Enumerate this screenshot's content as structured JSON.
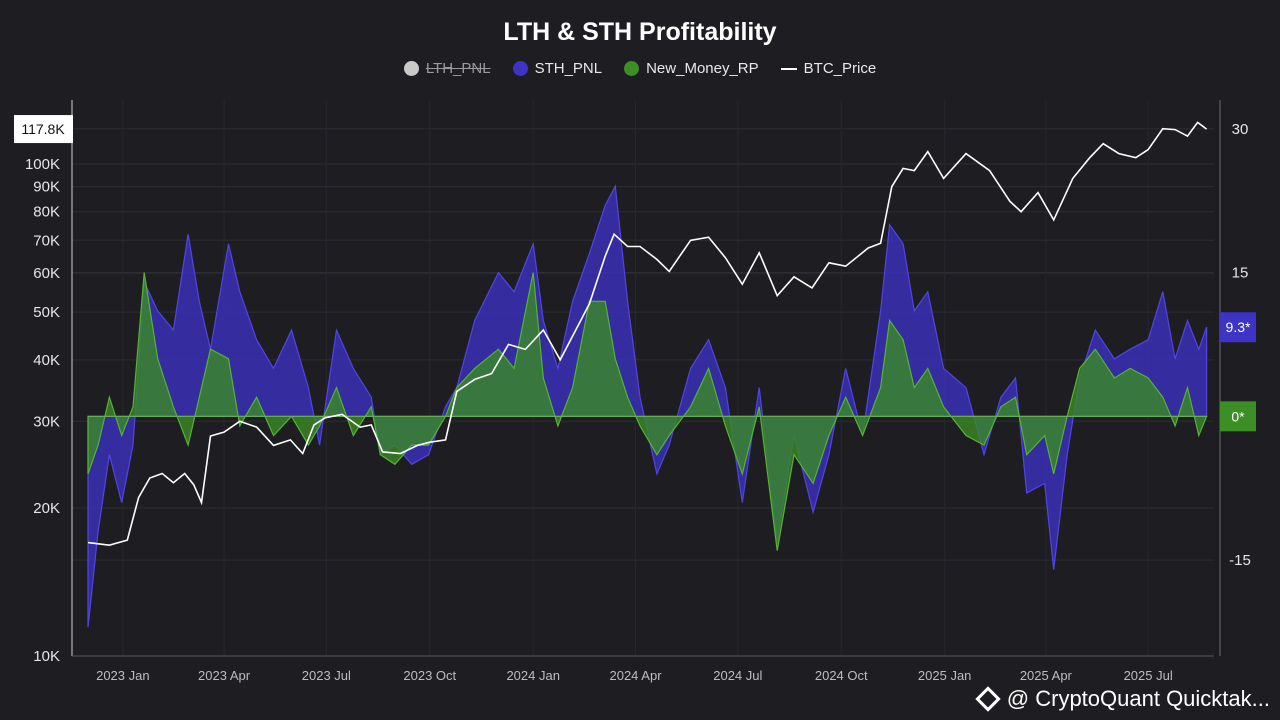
{
  "chart_data": {
    "type": "area",
    "title": "LTH & STH Profitability",
    "legend": [
      {
        "name": "LTH_PNL",
        "color": "#c9c9c9",
        "hidden": true
      },
      {
        "name": "STH_PNL",
        "color": "#3d33c4",
        "hidden": false
      },
      {
        "name": "New_Money_RP",
        "color": "#3c8f25",
        "hidden": false
      },
      {
        "name": "BTC_Price",
        "color": "#ffffff",
        "hidden": false
      }
    ],
    "legend_position": "top-center",
    "x_tick_labels": [
      "2023 Jan",
      "2023 Apr",
      "2023 Jul",
      "2023 Oct",
      "2024 Jan",
      "2024 Apr",
      "2024 Jul",
      "2024 Oct",
      "2025 Jan",
      "2025 Apr",
      "2025 Jul"
    ],
    "x_range": [
      "2022-12-01",
      "2025-08-25"
    ],
    "left_axis": {
      "scale": "log",
      "range": [
        10000,
        130000
      ],
      "tick_labels": [
        "10K",
        "20K",
        "30K",
        "40K",
        "50K",
        "60K",
        "70K",
        "80K",
        "90K",
        "100K"
      ],
      "tick_values": [
        10000,
        20000,
        30000,
        40000,
        50000,
        60000,
        70000,
        80000,
        90000,
        100000
      ],
      "current_label": "117.8K",
      "current_value": 117800
    },
    "right_axis": {
      "scale": "linear",
      "range": [
        -25,
        33
      ],
      "tick_labels": [
        "-15",
        "15",
        "30"
      ],
      "tick_values": [
        -15,
        15,
        30
      ],
      "badges": [
        {
          "label": "9.3*",
          "value": 9.3,
          "color": "#3d33c4"
        },
        {
          "label": "0*",
          "value": 0,
          "color": "#3c8f25"
        }
      ]
    },
    "grid": true,
    "series": [
      {
        "name": "BTC_Price",
        "axis": "left",
        "dates": [
          "2022-12-01",
          "2022-12-20",
          "2023-01-05",
          "2023-01-15",
          "2023-01-25",
          "2023-02-05",
          "2023-02-15",
          "2023-02-25",
          "2023-03-05",
          "2023-03-12",
          "2023-03-20",
          "2023-04-01",
          "2023-04-15",
          "2023-04-30",
          "2023-05-15",
          "2023-05-30",
          "2023-06-10",
          "2023-06-20",
          "2023-06-30",
          "2023-07-15",
          "2023-07-31",
          "2023-08-10",
          "2023-08-20",
          "2023-09-05",
          "2023-09-20",
          "2023-10-01",
          "2023-10-15",
          "2023-10-25",
          "2023-11-10",
          "2023-11-25",
          "2023-12-10",
          "2023-12-25",
          "2024-01-10",
          "2024-01-25",
          "2024-02-10",
          "2024-02-20",
          "2024-03-05",
          "2024-03-13",
          "2024-03-25",
          "2024-04-05",
          "2024-04-20",
          "2024-05-01",
          "2024-05-20",
          "2024-06-05",
          "2024-06-20",
          "2024-07-05",
          "2024-07-20",
          "2024-08-05",
          "2024-08-20",
          "2024-09-05",
          "2024-09-20",
          "2024-10-05",
          "2024-10-25",
          "2024-11-05",
          "2024-11-15",
          "2024-11-25",
          "2024-12-05",
          "2024-12-17",
          "2024-12-31",
          "2025-01-20",
          "2025-02-10",
          "2025-02-28",
          "2025-03-10",
          "2025-03-25",
          "2025-04-08",
          "2025-04-25",
          "2025-05-10",
          "2025-05-22",
          "2025-06-05",
          "2025-06-20",
          "2025-07-01",
          "2025-07-14",
          "2025-07-25",
          "2025-08-05",
          "2025-08-14",
          "2025-08-22"
        ],
        "values": [
          17000,
          16800,
          17200,
          21000,
          23000,
          23500,
          22500,
          23500,
          22300,
          20500,
          28000,
          28500,
          30000,
          29200,
          26800,
          27500,
          25800,
          29500,
          30500,
          31000,
          29200,
          29500,
          26000,
          25800,
          26800,
          27200,
          27500,
          34500,
          36500,
          37500,
          43000,
          42000,
          46000,
          40000,
          47000,
          52000,
          65000,
          72000,
          68000,
          68000,
          64000,
          60500,
          70000,
          71000,
          64500,
          57000,
          66000,
          54000,
          59000,
          56000,
          63000,
          62000,
          67500,
          69000,
          90000,
          98000,
          97000,
          106000,
          93500,
          105000,
          97000,
          84000,
          80000,
          87500,
          77000,
          93500,
          103000,
          110000,
          105000,
          103000,
          107000,
          118000,
          117500,
          114000,
          121500,
          117800
        ]
      },
      {
        "name": "STH_PNL",
        "axis": "right",
        "dates": [
          "2022-12-01",
          "2022-12-10",
          "2022-12-20",
          "2022-12-31",
          "2023-01-10",
          "2023-01-20",
          "2023-02-01",
          "2023-02-15",
          "2023-02-28",
          "2023-03-10",
          "2023-03-20",
          "2023-04-05",
          "2023-04-15",
          "2023-04-30",
          "2023-05-15",
          "2023-05-31",
          "2023-06-15",
          "2023-06-25",
          "2023-07-10",
          "2023-07-25",
          "2023-08-10",
          "2023-08-18",
          "2023-08-31",
          "2023-09-15",
          "2023-09-30",
          "2023-10-15",
          "2023-10-25",
          "2023-11-10",
          "2023-12-01",
          "2023-12-15",
          "2024-01-01",
          "2024-01-10",
          "2024-01-23",
          "2024-02-05",
          "2024-02-20",
          "2024-03-05",
          "2024-03-14",
          "2024-03-25",
          "2024-04-05",
          "2024-04-20",
          "2024-05-01",
          "2024-05-20",
          "2024-06-05",
          "2024-06-20",
          "2024-07-05",
          "2024-07-20",
          "2024-08-05",
          "2024-08-20",
          "2024-09-06",
          "2024-09-20",
          "2024-10-05",
          "2024-10-20",
          "2024-11-05",
          "2024-11-13",
          "2024-11-25",
          "2024-12-05",
          "2024-12-17",
          "2024-12-31",
          "2025-01-20",
          "2025-02-05",
          "2025-02-20",
          "2025-03-05",
          "2025-03-15",
          "2025-03-31",
          "2025-04-08",
          "2025-04-20",
          "2025-05-01",
          "2025-05-15",
          "2025-06-01",
          "2025-06-15",
          "2025-07-01",
          "2025-07-14",
          "2025-07-25",
          "2025-08-05",
          "2025-08-15",
          "2025-08-22"
        ],
        "values": [
          -22,
          -12,
          -4,
          -9,
          -3,
          14,
          11,
          9,
          19,
          12,
          7,
          18,
          13,
          8,
          5,
          9,
          3,
          -3,
          9,
          5,
          2,
          -4,
          -3,
          -5,
          -4,
          1,
          3,
          10,
          15,
          13,
          18,
          10,
          5,
          12,
          17,
          22,
          24,
          12,
          2,
          -6,
          -3,
          5,
          8,
          3,
          -9,
          3,
          -13,
          -2,
          -10,
          -4,
          5,
          -2,
          11,
          20,
          18,
          11,
          13,
          5,
          3,
          -4,
          2,
          4,
          -8,
          -7,
          -16,
          -4,
          4,
          9,
          6,
          7,
          8,
          13,
          6,
          10,
          7,
          9.3
        ]
      },
      {
        "name": "New_Money_RP",
        "axis": "right",
        "dates": [
          "2022-12-01",
          "2022-12-10",
          "2022-12-20",
          "2022-12-31",
          "2023-01-10",
          "2023-01-20",
          "2023-02-01",
          "2023-02-15",
          "2023-02-28",
          "2023-03-10",
          "2023-03-20",
          "2023-04-05",
          "2023-04-15",
          "2023-04-30",
          "2023-05-15",
          "2023-05-31",
          "2023-06-15",
          "2023-06-25",
          "2023-07-10",
          "2023-07-25",
          "2023-08-10",
          "2023-08-18",
          "2023-08-31",
          "2023-09-15",
          "2023-09-30",
          "2023-10-15",
          "2023-10-25",
          "2023-11-10",
          "2023-12-01",
          "2023-12-15",
          "2024-01-01",
          "2024-01-10",
          "2024-01-23",
          "2024-02-05",
          "2024-02-20",
          "2024-03-05",
          "2024-03-14",
          "2024-03-25",
          "2024-04-05",
          "2024-04-20",
          "2024-05-01",
          "2024-05-20",
          "2024-06-05",
          "2024-06-20",
          "2024-07-05",
          "2024-07-20",
          "2024-08-05",
          "2024-08-20",
          "2024-09-06",
          "2024-09-20",
          "2024-10-05",
          "2024-10-20",
          "2024-11-05",
          "2024-11-13",
          "2024-11-25",
          "2024-12-05",
          "2024-12-17",
          "2024-12-31",
          "2025-01-20",
          "2025-02-05",
          "2025-02-20",
          "2025-03-05",
          "2025-03-15",
          "2025-03-31",
          "2025-04-08",
          "2025-04-20",
          "2025-05-01",
          "2025-05-15",
          "2025-06-01",
          "2025-06-15",
          "2025-07-01",
          "2025-07-14",
          "2025-07-25",
          "2025-08-05",
          "2025-08-15",
          "2025-08-22"
        ],
        "values": [
          -6,
          -3,
          2,
          -2,
          1,
          15,
          6,
          1,
          -3,
          2,
          7,
          6,
          -1,
          2,
          -2,
          0,
          -3,
          -1,
          3,
          -2,
          1,
          -4,
          -5,
          -3,
          -3,
          0,
          3,
          5,
          7,
          5,
          15,
          4,
          -1,
          3,
          12,
          12,
          6,
          2,
          -1,
          -4,
          -2,
          1,
          5,
          -1,
          -6,
          1,
          -14,
          -4,
          -7,
          -2,
          2,
          -2,
          3,
          10,
          8,
          3,
          5,
          1,
          -2,
          -3,
          1,
          2,
          -4,
          -2,
          -6,
          0,
          5,
          7,
          4,
          5,
          4,
          2,
          -1,
          3,
          -2,
          0
        ]
      }
    ]
  },
  "watermark": {
    "text": "@ CryptoQuant Quicktak...",
    "icon": "binance-diamond-icon"
  }
}
